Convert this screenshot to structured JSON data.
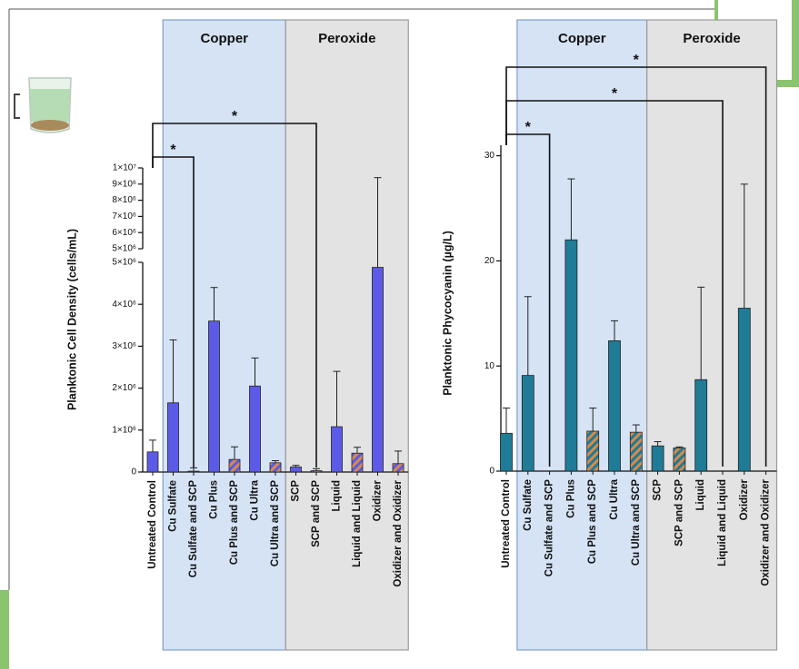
{
  "chart_data": [
    {
      "type": "bar",
      "y_label": "Planktonic Cell Density (cells/mL)",
      "categories": [
        "Untreated Control",
        "Cu Sulfate",
        "Cu Sulfate and SCP",
        "Cu Plus",
        "Cu Plus and SCP",
        "Cu Ultra",
        "Cu Ultra and SCP",
        "SCP",
        "SCP and SCP",
        "Liquid",
        "Liquid and Liquid",
        "Oxidizer",
        "Oxidizer and Oxidizer"
      ],
      "values": [
        480000,
        1650000,
        20000,
        3600000,
        300000,
        2050000,
        220000,
        120000,
        30000,
        1080000,
        450000,
        4880000,
        200000
      ],
      "errors": [
        280000,
        1500000,
        80000,
        800000,
        300000,
        670000,
        50000,
        40000,
        50000,
        1320000,
        140000,
        4520000,
        300000
      ],
      "hatched": [
        false,
        false,
        true,
        false,
        true,
        false,
        true,
        false,
        true,
        false,
        true,
        false,
        true
      ],
      "color": "#5b5be8",
      "hatch_color": "#d98a4a",
      "ylim": [
        0,
        5000000
      ],
      "yticks": [
        0,
        {
          "value": 1000000,
          "label": "1×10⁶"
        },
        {
          "value": 2000000,
          "label": "2×10⁶"
        },
        {
          "value": 3000000,
          "label": "3×10⁶"
        },
        {
          "value": 4000000,
          "label": "4×10⁶"
        },
        {
          "value": 5000000,
          "label": "5×10⁶"
        }
      ],
      "upper_ylim": [
        5000000,
        10000000
      ],
      "upper_yticks": [
        {
          "value": 5000000,
          "label": "5×10⁶"
        },
        {
          "value": 6000000,
          "label": "6×10⁶"
        },
        {
          "value": 7000000,
          "label": "7×10⁶"
        },
        {
          "value": 8000000,
          "label": "8×10⁶"
        },
        {
          "value": 9000000,
          "label": "9×10⁶"
        },
        {
          "value": 10000000,
          "label": "1×10⁷"
        }
      ],
      "groups": [
        {
          "label": "Copper",
          "start": 1,
          "end": 6,
          "color": "#d5e3f5",
          "border": "#7f9fcc"
        },
        {
          "label": "Peroxide",
          "start": 7,
          "end": 12,
          "color": "#e3e3e3",
          "border": "#9a9a9a"
        }
      ],
      "significance": [
        {
          "from": 0,
          "to": 2,
          "label": "*"
        },
        {
          "from": 0,
          "to": 8,
          "label": "*"
        }
      ]
    },
    {
      "type": "bar",
      "y_label": "Planktonic Phycocyanin (µg/L)",
      "categories": [
        "Untreated Control",
        "Cu Sulfate",
        "Cu Sulfate and SCP",
        "Cu Plus",
        "Cu Plus and SCP",
        "Cu Ultra",
        "Cu Ultra and SCP",
        "SCP",
        "SCP and SCP",
        "Liquid",
        "Liquid and Liquid",
        "Oxidizer",
        "Oxidizer and Oxidizer"
      ],
      "values": [
        3.6,
        9.1,
        null,
        22,
        3.8,
        12.4,
        3.7,
        2.4,
        2.2,
        8.7,
        null,
        15.5,
        null
      ],
      "errors": [
        2.4,
        7.5,
        null,
        5.8,
        2.2,
        1.9,
        0.7,
        0.4,
        0.1,
        8.8,
        null,
        11.8,
        null
      ],
      "hatched": [
        false,
        false,
        true,
        false,
        true,
        false,
        true,
        false,
        true,
        false,
        true,
        false,
        true
      ],
      "color": "#1f7b96",
      "hatch_color": "#d98a4a",
      "ylim": [
        0,
        31
      ],
      "yticks": [
        0,
        10,
        20,
        30
      ],
      "groups": [
        {
          "label": "Copper",
          "start": 1,
          "end": 6,
          "color": "#d5e3f5",
          "border": "#7f9fcc"
        },
        {
          "label": "Peroxide",
          "start": 7,
          "end": 12,
          "color": "#e3e3e3",
          "border": "#9a9a9a"
        }
      ],
      "significance": [
        {
          "from": 0,
          "to": 2,
          "label": "*"
        },
        {
          "from": 0,
          "to": 10,
          "label": "*"
        },
        {
          "from": 0,
          "to": 12,
          "label": "*"
        }
      ]
    }
  ]
}
